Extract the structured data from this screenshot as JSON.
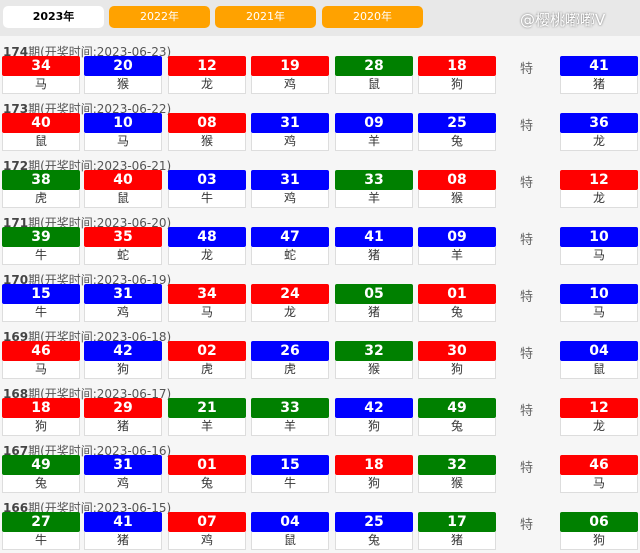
{
  "tabs": [
    {
      "label": "2023年",
      "active": true
    },
    {
      "label": "2022年"
    },
    {
      "label": "2021年"
    },
    {
      "label": "2020年"
    }
  ],
  "colors": {
    "red": "#ff0000",
    "blue": "#0000ff",
    "green": "#008000",
    "tab_orange": "#ffa200"
  },
  "special_label": "特",
  "draws": [
    {
      "issue": "174",
      "prefix": "期(开奖时间:2023-06-23)",
      "balls": [
        [
          "34",
          "red",
          "马"
        ],
        [
          "20",
          "blue",
          "猴"
        ],
        [
          "12",
          "red",
          "龙"
        ],
        [
          "19",
          "red",
          "鸡"
        ],
        [
          "28",
          "green",
          "鼠"
        ],
        [
          "18",
          "red",
          "狗"
        ]
      ],
      "special": [
        "41",
        "blue",
        "猪"
      ]
    },
    {
      "issue": "173",
      "prefix": "期(开奖时间:2023-06-22)",
      "balls": [
        [
          "40",
          "red",
          "鼠"
        ],
        [
          "10",
          "blue",
          "马"
        ],
        [
          "08",
          "red",
          "猴"
        ],
        [
          "31",
          "blue",
          "鸡"
        ],
        [
          "09",
          "blue",
          "羊"
        ],
        [
          "25",
          "blue",
          "兔"
        ]
      ],
      "special": [
        "36",
        "blue",
        "龙"
      ]
    },
    {
      "issue": "172",
      "prefix": "期(开奖时间:2023-06-21)",
      "balls": [
        [
          "38",
          "green",
          "虎"
        ],
        [
          "40",
          "red",
          "鼠"
        ],
        [
          "03",
          "blue",
          "牛"
        ],
        [
          "31",
          "blue",
          "鸡"
        ],
        [
          "33",
          "green",
          "羊"
        ],
        [
          "08",
          "red",
          "猴"
        ]
      ],
      "special": [
        "12",
        "red",
        "龙"
      ]
    },
    {
      "issue": "171",
      "prefix": "期(开奖时间:2023-06-20)",
      "balls": [
        [
          "39",
          "green",
          "牛"
        ],
        [
          "35",
          "red",
          "蛇"
        ],
        [
          "48",
          "blue",
          "龙"
        ],
        [
          "47",
          "blue",
          "蛇"
        ],
        [
          "41",
          "blue",
          "猪"
        ],
        [
          "09",
          "blue",
          "羊"
        ]
      ],
      "special": [
        "10",
        "blue",
        "马"
      ]
    },
    {
      "issue": "170",
      "prefix": "期(开奖时间:2023-06-19)",
      "balls": [
        [
          "15",
          "blue",
          "牛"
        ],
        [
          "31",
          "blue",
          "鸡"
        ],
        [
          "34",
          "red",
          "马"
        ],
        [
          "24",
          "red",
          "龙"
        ],
        [
          "05",
          "green",
          "猪"
        ],
        [
          "01",
          "red",
          "兔"
        ]
      ],
      "special": [
        "10",
        "blue",
        "马"
      ]
    },
    {
      "issue": "169",
      "prefix": "期(开奖时间:2023-06-18)",
      "balls": [
        [
          "46",
          "red",
          "马"
        ],
        [
          "42",
          "blue",
          "狗"
        ],
        [
          "02",
          "red",
          "虎"
        ],
        [
          "26",
          "blue",
          "虎"
        ],
        [
          "32",
          "green",
          "猴"
        ],
        [
          "30",
          "red",
          "狗"
        ]
      ],
      "special": [
        "04",
        "blue",
        "鼠"
      ]
    },
    {
      "issue": "168",
      "prefix": "期(开奖时间:2023-06-17)",
      "balls": [
        [
          "18",
          "red",
          "狗"
        ],
        [
          "29",
          "red",
          "猪"
        ],
        [
          "21",
          "green",
          "羊"
        ],
        [
          "33",
          "green",
          "羊"
        ],
        [
          "42",
          "blue",
          "狗"
        ],
        [
          "49",
          "green",
          "兔"
        ]
      ],
      "special": [
        "12",
        "red",
        "龙"
      ]
    },
    {
      "issue": "167",
      "prefix": "期(开奖时间:2023-06-16)",
      "balls": [
        [
          "49",
          "green",
          "兔"
        ],
        [
          "31",
          "blue",
          "鸡"
        ],
        [
          "01",
          "red",
          "兔"
        ],
        [
          "15",
          "blue",
          "牛"
        ],
        [
          "18",
          "red",
          "狗"
        ],
        [
          "32",
          "green",
          "猴"
        ]
      ],
      "special": [
        "46",
        "red",
        "马"
      ]
    },
    {
      "issue": "166",
      "prefix": "期(开奖时间:2023-06-15)",
      "balls": [
        [
          "27",
          "green",
          "牛"
        ],
        [
          "41",
          "blue",
          "猪"
        ],
        [
          "07",
          "red",
          "鸡"
        ],
        [
          "04",
          "blue",
          "鼠"
        ],
        [
          "25",
          "blue",
          "兔"
        ],
        [
          "17",
          "green",
          "猪"
        ]
      ],
      "special": [
        "06",
        "green",
        "狗"
      ]
    }
  ],
  "watermark": "@樱桃嘟嘟V"
}
